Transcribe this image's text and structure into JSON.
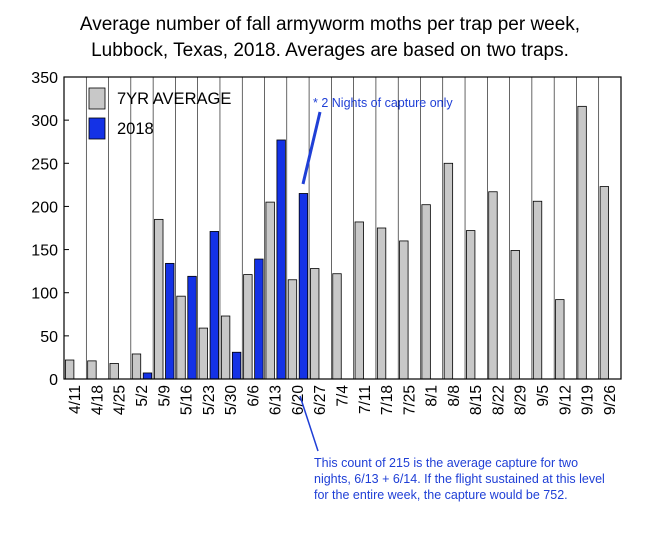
{
  "chart_data": {
    "type": "bar",
    "title": [
      "Average number of fall armyworm moths per trap per week,",
      "Lubbock, Texas, 2018. Averages are based on two traps."
    ],
    "xlabel": "",
    "ylabel": "",
    "ylim": [
      0,
      350
    ],
    "yticks": [
      0,
      50,
      100,
      150,
      200,
      250,
      300,
      350
    ],
    "categories": [
      "4/11",
      "4/18",
      "4/25",
      "5/2",
      "5/9",
      "5/16",
      "5/23",
      "5/30",
      "6/6",
      "6/13",
      "6/20",
      "6/27",
      "7/4",
      "7/11",
      "7/18",
      "7/25",
      "8/1",
      "8/8",
      "8/15",
      "8/22",
      "8/29",
      "9/5",
      "9/12",
      "9/19",
      "9/26"
    ],
    "series": [
      {
        "name": "7YR AVERAGE",
        "color": "#c8c8c8",
        "values": [
          22,
          21,
          18,
          29,
          185,
          96,
          59,
          73,
          121,
          205,
          115,
          128,
          122,
          182,
          175,
          160,
          202,
          250,
          172,
          217,
          149,
          206,
          92,
          316,
          223
        ]
      },
      {
        "name": "2018",
        "color": "#1432e6",
        "values": [
          null,
          null,
          null,
          7,
          134,
          119,
          171,
          31,
          139,
          277,
          215,
          null,
          null,
          null,
          null,
          null,
          null,
          null,
          null,
          null,
          null,
          null,
          null,
          null,
          null
        ]
      }
    ],
    "legend": {
      "placement": "top-left"
    },
    "annotations": {
      "top": "* 2 Nights of capture only",
      "bottom": [
        "This count of 215 is the average capture for two",
        "nights, 6/13 + 6/14. If the flight sustained at this level",
        "for the entire week, the capture would be 752."
      ],
      "color": "#1f3fd6"
    }
  }
}
